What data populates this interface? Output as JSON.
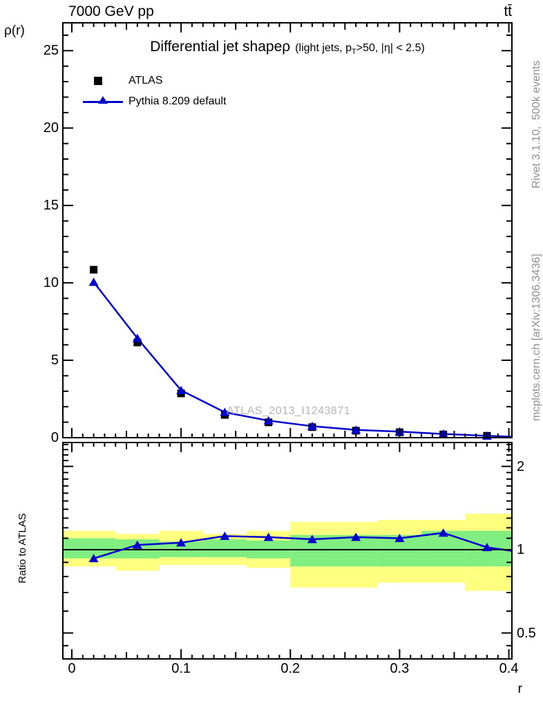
{
  "header": {
    "beam": "7000 GeV pp",
    "process": "tt̄"
  },
  "watermark": "ATLAS_2013_I1243871",
  "side_notes": {
    "top_rotated": "Rivet 3.1.10,  500k events",
    "bottom_rotated": "mcplots.cern.ch [arXiv:1306.3436]"
  },
  "colors": {
    "mc_line": "#0000cd",
    "data_marker": "#000000",
    "band_outer": "#ffff80",
    "band_inner": "#80ee80",
    "frame": "#000000",
    "side_text": "#8f8f8f",
    "watermark": "#b5b5b5"
  },
  "chart_data": [
    {
      "id": "main",
      "type": "line",
      "title": "Differential jet shapeρ",
      "subtitle_parts": {
        "pre": "(light jets, p",
        "sub": "T",
        "post": ">50, |η| < 2.5)"
      },
      "ylabel": "ρ(r)",
      "xlabel": "r",
      "xlim": [
        -0.0082,
        0.4028
      ],
      "ylim": [
        0,
        26.8
      ],
      "grid": false,
      "legend_position": "top-left",
      "yticks": {
        "major": [
          0,
          5,
          10,
          15,
          20,
          25
        ],
        "labels": [
          "0",
          "5",
          "10",
          "15",
          "20",
          "25"
        ],
        "minor_step": 1
      },
      "xticks": {
        "major": [
          0,
          0.1,
          0.2,
          0.3,
          0.4
        ],
        "labels": [
          "0",
          "0.1",
          "0.2",
          "0.3",
          "0.4"
        ],
        "mid_step": 0.05,
        "minor_step": 0.01
      },
      "x": [
        0.02,
        0.06,
        0.1,
        0.14,
        0.18,
        0.22,
        0.26,
        0.3,
        0.34,
        0.38
      ],
      "series": [
        {
          "name": "ATLAS",
          "marker": "square",
          "line": false,
          "values": [
            10.85,
            6.15,
            2.86,
            1.47,
            0.99,
            0.68,
            0.45,
            0.35,
            0.21,
            0.12
          ]
        },
        {
          "name": "Pythia 8.209 default",
          "marker": "triangle",
          "line": true,
          "values": [
            10.05,
            6.42,
            3.06,
            1.64,
            1.1,
            0.74,
            0.5,
            0.39,
            0.24,
            0.12
          ],
          "edge_extension": 0.06
        }
      ]
    },
    {
      "id": "ratio",
      "type": "line+bands",
      "ylabel": "Ratio to ATLAS",
      "yscale": "log",
      "ylim": [
        0.403,
        2.44
      ],
      "reference_line": 1,
      "yticks": {
        "major": [
          2,
          1,
          0.5
        ],
        "labels": [
          "2",
          "1",
          "0.5"
        ],
        "minor_start": 0.5,
        "minor_end": 2.4,
        "minor_step": 0.1,
        "extra_minor": [
          0.45
        ]
      },
      "band_edges": [
        0.0,
        0.04,
        0.08,
        0.12,
        0.16,
        0.2,
        0.24,
        0.28,
        0.32,
        0.36,
        0.4
      ],
      "bands": {
        "outer_hi": [
          1.17,
          1.14,
          1.17,
          1.14,
          1.17,
          1.26,
          1.26,
          1.28,
          1.28,
          1.35
        ],
        "outer_lo": [
          0.87,
          0.84,
          0.88,
          0.88,
          0.86,
          0.73,
          0.73,
          0.76,
          0.76,
          0.71
        ],
        "inner_hi": [
          1.1,
          1.09,
          1.07,
          1.09,
          1.08,
          1.13,
          1.13,
          1.13,
          1.17,
          1.17
        ],
        "inner_lo": [
          0.93,
          0.93,
          0.94,
          0.94,
          0.93,
          0.87,
          0.87,
          0.87,
          0.87,
          0.87
        ]
      },
      "x": [
        0.02,
        0.06,
        0.1,
        0.14,
        0.18,
        0.22,
        0.26,
        0.3,
        0.34,
        0.38
      ],
      "ratio": [
        0.93,
        1.04,
        1.06,
        1.12,
        1.11,
        1.09,
        1.11,
        1.1,
        1.15,
        1.02
      ],
      "edge_extension": 0.99
    }
  ]
}
